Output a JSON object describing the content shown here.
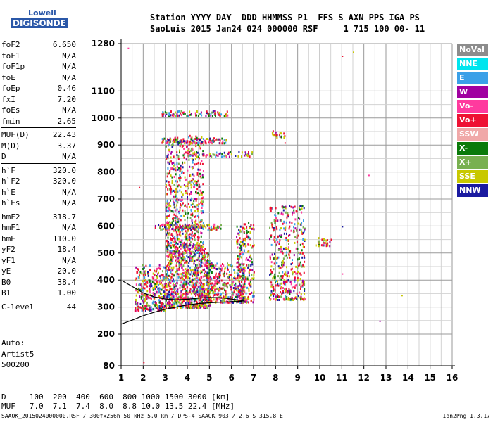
{
  "logo": {
    "top": "Lowell",
    "bottom": "DIGISONDE"
  },
  "header": {
    "line1": "Station YYYY DAY  DDD HHMMSS P1  FFS S AXN PPS IGA PS",
    "line2": "SaoLuis 2015 Jan24 024 000000 RSF     1 715 100 00- 11"
  },
  "params": [
    {
      "k": "foF2",
      "v": "6.650"
    },
    {
      "k": "foF1",
      "v": "N/A"
    },
    {
      "k": "foF1p",
      "v": "N/A"
    },
    {
      "k": "foE",
      "v": "N/A"
    },
    {
      "k": "foEp",
      "v": "0.46"
    },
    {
      "k": "fxI",
      "v": "7.20"
    },
    {
      "k": "foEs",
      "v": "N/A"
    },
    {
      "k": "fmin",
      "v": "2.65"
    },
    {
      "k": "MUF(D)",
      "v": "22.43"
    },
    {
      "k": "M(D)",
      "v": "3.37"
    },
    {
      "k": "D",
      "v": "N/A"
    },
    {
      "k": "h`F",
      "v": "320.0"
    },
    {
      "k": "h`F2",
      "v": "320.0"
    },
    {
      "k": "h`E",
      "v": "N/A"
    },
    {
      "k": "h`Es",
      "v": "N/A"
    },
    {
      "k": "hmF2",
      "v": "318.7"
    },
    {
      "k": "hmF1",
      "v": "N/A"
    },
    {
      "k": "hmE",
      "v": "110.0"
    },
    {
      "k": "yF2",
      "v": "18.4"
    },
    {
      "k": "yF1",
      "v": "N/A"
    },
    {
      "k": "yE",
      "v": "20.0"
    },
    {
      "k": "B0",
      "v": "38.4"
    },
    {
      "k": "B1",
      "v": "1.00"
    },
    {
      "k": "C-level",
      "v": "44"
    }
  ],
  "auto": {
    "l1": "Auto:",
    "l2": "Artist5",
    "l3": "500200"
  },
  "legend": [
    {
      "label": "NoVal",
      "color": "#8c8c8c"
    },
    {
      "label": "NNE",
      "color": "#00e5ee"
    },
    {
      "label": "E",
      "color": "#3aa0e8"
    },
    {
      "label": "W",
      "color": "#a000a0"
    },
    {
      "label": "Vo-",
      "color": "#ff3a9e"
    },
    {
      "label": "Vo+",
      "color": "#ee1133"
    },
    {
      "label": "SSW",
      "color": "#f0a8a8"
    },
    {
      "label": "X-",
      "color": "#0a7a0a"
    },
    {
      "label": "X+",
      "color": "#78b050"
    },
    {
      "label": "SSE",
      "color": "#c8c800"
    },
    {
      "label": "NNW",
      "color": "#1a1aa0"
    }
  ],
  "dtable": {
    "row1": "D     100  200  400  600  800 1000 1500 3000 [km]",
    "row2": "MUF   7.0  7.1  7.4  8.0  8.8 10.0 13.5 22.4 [MHz]"
  },
  "footer": {
    "left": "SAAOK_2015024000000.RSF / 300fx256h 50 kHz 5.0 km / DPS-4 SAAOK 903 / 2.6 S 315.8 E",
    "right": "Ion2Png 1.3.17"
  },
  "chart_data": {
    "type": "scatter",
    "x_ticks": [
      "1",
      "2",
      "3",
      "4",
      "5",
      "6",
      "7",
      "8",
      "9",
      "10",
      "11",
      "12",
      "13",
      "14",
      "15",
      "16"
    ],
    "y_ticks": [
      "80",
      "200",
      "300",
      "400",
      "500",
      "600",
      "700",
      "800",
      "900",
      "1000",
      "1100",
      "1280"
    ],
    "xlim": [
      1,
      16
    ],
    "ylim": [
      80,
      1280
    ],
    "grid": true,
    "traces": [
      {
        "name": "virtual height trace",
        "x": [
          1.0,
          1.6,
          2.0,
          2.5,
          3.0,
          3.5,
          4.0,
          4.5,
          5.0,
          5.5,
          6.0,
          6.5
        ],
        "y": [
          237,
          255,
          268,
          281,
          292,
          300,
          308,
          313,
          316,
          318,
          320,
          321
        ]
      },
      {
        "name": "second trace",
        "x": [
          1.1,
          1.6,
          2.0,
          2.5,
          3.0,
          3.5,
          4.0,
          4.5,
          5.0,
          5.5,
          6.0,
          6.6
        ],
        "y": [
          395,
          372,
          352,
          338,
          330,
          327,
          329,
          333,
          336,
          335,
          330,
          322
        ]
      }
    ],
    "clusters": [
      {
        "x": [
          1.6,
          3.0
        ],
        "y": [
          290,
          460
        ],
        "n": 320
      },
      {
        "x": [
          3.0,
          5.0
        ],
        "y": [
          300,
          520
        ],
        "n": 900
      },
      {
        "x": [
          3.0,
          4.7
        ],
        "y": [
          520,
          940
        ],
        "n": 650
      },
      {
        "x": [
          4.8,
          6.6
        ],
        "y": [
          320,
          470
        ],
        "n": 360
      },
      {
        "x": [
          6.2,
          7.0
        ],
        "y": [
          320,
          620
        ],
        "n": 250
      },
      {
        "x": [
          7.7,
          9.3
        ],
        "y": [
          330,
          680
        ],
        "n": 420
      },
      {
        "x": [
          2.8,
          5.8
        ],
        "y": [
          1010,
          1030
        ],
        "n": 90
      },
      {
        "x": [
          2.8,
          5.8
        ],
        "y": [
          910,
          930
        ],
        "n": 110
      },
      {
        "x": [
          4.0,
          7.0
        ],
        "y": [
          860,
          880
        ],
        "n": 70
      },
      {
        "x": [
          2.5,
          5.5
        ],
        "y": [
          590,
          610
        ],
        "n": 120
      },
      {
        "x": [
          7.8,
          8.4
        ],
        "y": [
          930,
          955
        ],
        "n": 25
      },
      {
        "x": [
          9.8,
          10.5
        ],
        "y": [
          530,
          560
        ],
        "n": 30
      }
    ],
    "outliers": [
      {
        "x": 1.3,
        "y": 1265
      },
      {
        "x": 11.0,
        "y": 1235
      },
      {
        "x": 11.5,
        "y": 1250
      },
      {
        "x": 12.2,
        "y": 790
      },
      {
        "x": 11.0,
        "y": 600
      },
      {
        "x": 11.0,
        "y": 425
      },
      {
        "x": 12.7,
        "y": 250
      },
      {
        "x": 13.7,
        "y": 345
      },
      {
        "x": 8.4,
        "y": 910
      },
      {
        "x": 2.0,
        "y": 95
      },
      {
        "x": 1.8,
        "y": 745
      }
    ]
  }
}
